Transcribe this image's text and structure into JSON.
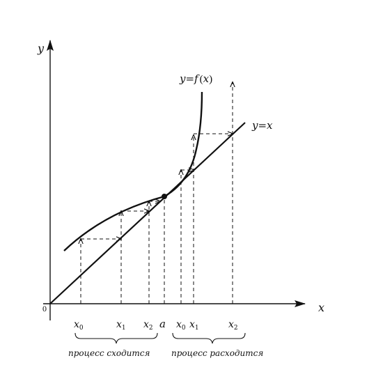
{
  "axes": {
    "x_label": "x",
    "y_label": "y",
    "origin_label": "0"
  },
  "curve_label": {
    "prefix": "y=f",
    "open": "(",
    "arg": "x",
    "close": ")"
  },
  "line_label": "y=x",
  "converging": {
    "points": [
      {
        "base": "x",
        "sub": "0"
      },
      {
        "base": "x",
        "sub": "1"
      },
      {
        "base": "x",
        "sub": "2"
      }
    ],
    "caption": "процесс сходится"
  },
  "fixed_point_label": "a",
  "diverging": {
    "points": [
      {
        "base": "x",
        "sub": "0"
      },
      {
        "base": "x",
        "sub": "1"
      },
      {
        "base": "x",
        "sub": "2"
      }
    ],
    "caption": "процесс расходится"
  },
  "colors": {
    "ink": "#111111",
    "background": "#ffffff"
  }
}
